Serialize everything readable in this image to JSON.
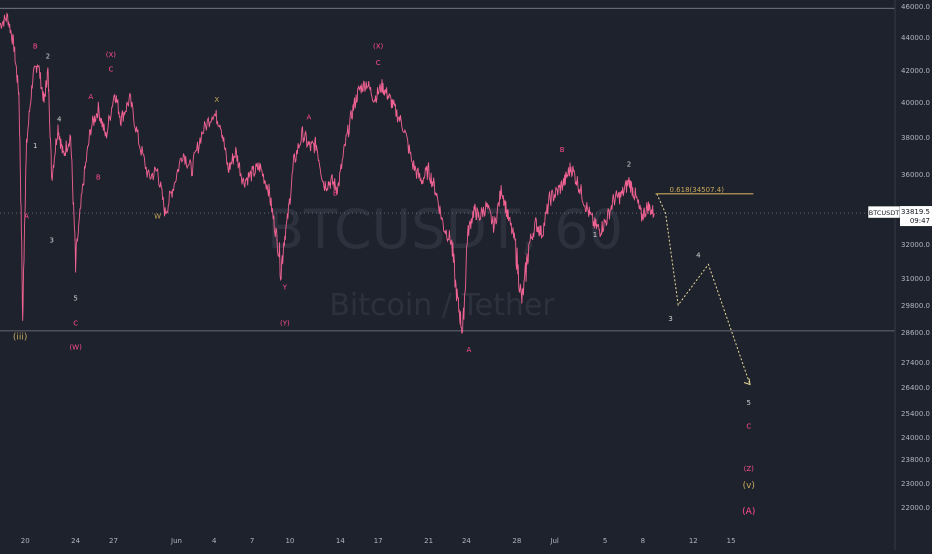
{
  "chart_data": {
    "type": "line",
    "title": "",
    "watermark": {
      "symbol": "BTCUSDT, 60",
      "name": "Bitcoin / Tether"
    },
    "colors": {
      "background": "#1e222d",
      "price": "#f06292",
      "projection": "#e8d99a",
      "fib": "#c8a95b",
      "label": "#d0d0d0",
      "label_alt": "#ff4d8d",
      "label_gold": "#c8a95b",
      "axis_text": "#b2b5be",
      "price_badge_bg": "#ffffff",
      "price_badge_text": "#131722"
    },
    "x_axis": {
      "range": [
        0,
        71
      ],
      "ticks": [
        {
          "x": 2,
          "label": "20"
        },
        {
          "x": 6,
          "label": "24"
        },
        {
          "x": 9,
          "label": "27"
        },
        {
          "x": 14,
          "label": "Jun"
        },
        {
          "x": 17,
          "label": "4"
        },
        {
          "x": 20,
          "label": "7"
        },
        {
          "x": 23,
          "label": "10"
        },
        {
          "x": 27,
          "label": "14"
        },
        {
          "x": 30,
          "label": "17"
        },
        {
          "x": 34,
          "label": "21"
        },
        {
          "x": 37,
          "label": "24"
        },
        {
          "x": 41,
          "label": "28"
        },
        {
          "x": 44,
          "label": "Jul"
        },
        {
          "x": 48,
          "label": "5"
        },
        {
          "x": 51,
          "label": "8"
        },
        {
          "x": 55,
          "label": "12"
        },
        {
          "x": 58,
          "label": "15"
        }
      ]
    },
    "y_axis": {
      "range": [
        21000,
        46000
      ],
      "ticks": [
        {
          "v": 46000,
          "label": "46000.0"
        },
        {
          "v": 44000,
          "label": "44000.0"
        },
        {
          "v": 42000,
          "label": "42000.0"
        },
        {
          "v": 40000,
          "label": "40000.0"
        },
        {
          "v": 38000,
          "label": "38000.0"
        },
        {
          "v": 36000,
          "label": "36000.0"
        },
        {
          "v": 34000,
          "label": "34000.0"
        },
        {
          "v": 32000,
          "label": "32000.0"
        },
        {
          "v": 31000,
          "label": "31000.0"
        },
        {
          "v": 29800,
          "label": "29800.0"
        },
        {
          "v": 28600,
          "label": "28600.0"
        },
        {
          "v": 27400,
          "label": "27400.0"
        },
        {
          "v": 26400,
          "label": "26400.0"
        },
        {
          "v": 25400,
          "label": "25400.0"
        },
        {
          "v": 24000,
          "label": "24000.0"
        },
        {
          "v": 23800,
          "label": "23800.0"
        },
        {
          "v": 23000,
          "label": "23000.0"
        },
        {
          "v": 22000,
          "label": "22000.0"
        }
      ]
    },
    "current_price": {
      "value": 33819.5,
      "symbol": "BTCUSDT",
      "price_label": "33819.5",
      "countdown": "09:47"
    },
    "horizontal_levels": [
      {
        "value": 45850
      },
      {
        "value": 28650
      }
    ],
    "price_series": [
      {
        "x": 0,
        "y": 44800
      },
      {
        "x": 0.6,
        "y": 45300
      },
      {
        "x": 1.1,
        "y": 43500
      },
      {
        "x": 1.5,
        "y": 40500
      },
      {
        "x": 1.8,
        "y": 29000
      },
      {
        "x": 2.1,
        "y": 37500
      },
      {
        "x": 2.6,
        "y": 41500
      },
      {
        "x": 3.0,
        "y": 42500
      },
      {
        "x": 3.5,
        "y": 40000
      },
      {
        "x": 3.8,
        "y": 42000
      },
      {
        "x": 4.1,
        "y": 35800
      },
      {
        "x": 4.6,
        "y": 38600
      },
      {
        "x": 5.0,
        "y": 37000
      },
      {
        "x": 5.6,
        "y": 38100
      },
      {
        "x": 6.0,
        "y": 31200
      },
      {
        "x": 6.6,
        "y": 35500
      },
      {
        "x": 7.2,
        "y": 38500
      },
      {
        "x": 7.8,
        "y": 39600
      },
      {
        "x": 8.4,
        "y": 38000
      },
      {
        "x": 9.1,
        "y": 40600
      },
      {
        "x": 9.6,
        "y": 39000
      },
      {
        "x": 10.3,
        "y": 40200
      },
      {
        "x": 11.0,
        "y": 37800
      },
      {
        "x": 11.8,
        "y": 35800
      },
      {
        "x": 12.5,
        "y": 36200
      },
      {
        "x": 13.1,
        "y": 33800
      },
      {
        "x": 13.7,
        "y": 35200
      },
      {
        "x": 14.5,
        "y": 37200
      },
      {
        "x": 15.2,
        "y": 36200
      },
      {
        "x": 16.0,
        "y": 38200
      },
      {
        "x": 16.9,
        "y": 39400
      },
      {
        "x": 17.5,
        "y": 38800
      },
      {
        "x": 18.1,
        "y": 36200
      },
      {
        "x": 18.7,
        "y": 37200
      },
      {
        "x": 19.3,
        "y": 35600
      },
      {
        "x": 20.0,
        "y": 36000
      },
      {
        "x": 20.6,
        "y": 36400
      },
      {
        "x": 21.3,
        "y": 35200
      },
      {
        "x": 21.8,
        "y": 33000
      },
      {
        "x": 22.3,
        "y": 31200
      },
      {
        "x": 22.8,
        "y": 33400
      },
      {
        "x": 23.3,
        "y": 36600
      },
      {
        "x": 24.0,
        "y": 38200
      },
      {
        "x": 24.6,
        "y": 37400
      },
      {
        "x": 25.1,
        "y": 37600
      },
      {
        "x": 25.7,
        "y": 35400
      },
      {
        "x": 26.3,
        "y": 35600
      },
      {
        "x": 26.8,
        "y": 35200
      },
      {
        "x": 27.4,
        "y": 37600
      },
      {
        "x": 28.0,
        "y": 39600
      },
      {
        "x": 28.5,
        "y": 40800
      },
      {
        "x": 29.1,
        "y": 41200
      },
      {
        "x": 29.7,
        "y": 40200
      },
      {
        "x": 30.3,
        "y": 41000
      },
      {
        "x": 30.8,
        "y": 40400
      },
      {
        "x": 31.3,
        "y": 39600
      },
      {
        "x": 32.0,
        "y": 38600
      },
      {
        "x": 32.7,
        "y": 36600
      },
      {
        "x": 33.4,
        "y": 35600
      },
      {
        "x": 34.0,
        "y": 36200
      },
      {
        "x": 34.6,
        "y": 35000
      },
      {
        "x": 35.2,
        "y": 33000
      },
      {
        "x": 35.8,
        "y": 32200
      },
      {
        "x": 36.3,
        "y": 30000
      },
      {
        "x": 36.7,
        "y": 28600
      },
      {
        "x": 37.1,
        "y": 32600
      },
      {
        "x": 37.6,
        "y": 34000
      },
      {
        "x": 38.0,
        "y": 33600
      },
      {
        "x": 38.6,
        "y": 34200
      },
      {
        "x": 39.2,
        "y": 33000
      },
      {
        "x": 39.8,
        "y": 35200
      },
      {
        "x": 40.3,
        "y": 33600
      },
      {
        "x": 40.9,
        "y": 32000
      },
      {
        "x": 41.4,
        "y": 30000
      },
      {
        "x": 41.9,
        "y": 31800
      },
      {
        "x": 42.5,
        "y": 33200
      },
      {
        "x": 43.0,
        "y": 32600
      },
      {
        "x": 43.6,
        "y": 34600
      },
      {
        "x": 44.2,
        "y": 35000
      },
      {
        "x": 44.8,
        "y": 35600
      },
      {
        "x": 45.3,
        "y": 36400
      },
      {
        "x": 45.9,
        "y": 35400
      },
      {
        "x": 46.5,
        "y": 34200
      },
      {
        "x": 47.1,
        "y": 33200
      },
      {
        "x": 47.6,
        "y": 32800
      },
      {
        "x": 48.1,
        "y": 33400
      },
      {
        "x": 48.7,
        "y": 34600
      },
      {
        "x": 49.3,
        "y": 34800
      },
      {
        "x": 49.9,
        "y": 35600
      },
      {
        "x": 50.4,
        "y": 34800
      },
      {
        "x": 50.9,
        "y": 33600
      },
      {
        "x": 51.4,
        "y": 34200
      },
      {
        "x": 51.9,
        "y": 33800
      }
    ],
    "projection": [
      {
        "x": 52.1,
        "y": 34900
      },
      {
        "x": 52.8,
        "y": 33800
      },
      {
        "x": 53.8,
        "y": 29800
      },
      {
        "x": 56.2,
        "y": 31400
      },
      {
        "x": 59.5,
        "y": 26500
      }
    ],
    "fib_level": {
      "x0": 52.0,
      "x1": 55.0,
      "y": 34900,
      "label": "0.618(34507.4)"
    },
    "wave_labels": [
      {
        "text": "B",
        "x": 2.8,
        "y": 43300,
        "style": "label_alt"
      },
      {
        "text": "2",
        "x": 3.8,
        "y": 42700,
        "style": "label"
      },
      {
        "text": "1",
        "x": 2.8,
        "y": 37400,
        "style": "label"
      },
      {
        "text": "A",
        "x": 2.1,
        "y": 33500,
        "style": "label_alt"
      },
      {
        "text": "3",
        "x": 4.1,
        "y": 32100,
        "style": "label"
      },
      {
        "text": "4",
        "x": 4.7,
        "y": 38900,
        "style": "label"
      },
      {
        "text": "5",
        "x": 6.0,
        "y": 30000,
        "style": "label"
      },
      {
        "text": "C",
        "x": 6.0,
        "y": 28900,
        "style": "label_alt"
      },
      {
        "text": "(W)",
        "x": 6.0,
        "y": 27900,
        "style": "label_alt"
      },
      {
        "text": "(iii)",
        "x": 1.6,
        "y": 28300,
        "style": "label_gold"
      },
      {
        "text": "A",
        "x": 7.2,
        "y": 40200,
        "style": "label_alt"
      },
      {
        "text": "B",
        "x": 7.8,
        "y": 35700,
        "style": "label_alt"
      },
      {
        "text": "(X)",
        "x": 8.8,
        "y": 42800,
        "style": "label_alt"
      },
      {
        "text": "C",
        "x": 8.8,
        "y": 41900,
        "style": "label_alt"
      },
      {
        "text": "W",
        "x": 12.5,
        "y": 33500,
        "style": "label_gold"
      },
      {
        "text": "X",
        "x": 17.2,
        "y": 40000,
        "style": "label_gold"
      },
      {
        "text": "A",
        "x": 24.5,
        "y": 39000,
        "style": "label_alt"
      },
      {
        "text": "B",
        "x": 26.6,
        "y": 34800,
        "style": "label_alt"
      },
      {
        "text": "Y",
        "x": 22.6,
        "y": 30500,
        "style": "label_alt"
      },
      {
        "text": "(Y)",
        "x": 22.6,
        "y": 28900,
        "style": "label_alt"
      },
      {
        "text": "(X)",
        "x": 30.0,
        "y": 43300,
        "style": "label_alt"
      },
      {
        "text": "C",
        "x": 30.0,
        "y": 42300,
        "style": "label_alt"
      },
      {
        "text": "A",
        "x": 37.2,
        "y": 27800,
        "style": "label_alt"
      },
      {
        "text": "B",
        "x": 44.6,
        "y": 37200,
        "style": "label_alt"
      },
      {
        "text": "1",
        "x": 47.2,
        "y": 32400,
        "style": "label"
      },
      {
        "text": "2",
        "x": 49.9,
        "y": 36400,
        "style": "label"
      },
      {
        "text": "3",
        "x": 53.2,
        "y": 29100,
        "style": "label"
      },
      {
        "text": "4",
        "x": 55.4,
        "y": 31600,
        "style": "label"
      },
      {
        "text": "5",
        "x": 59.4,
        "y": 25700,
        "style": "label"
      },
      {
        "text": "C",
        "x": 59.4,
        "y": 24500,
        "style": "label_alt"
      },
      {
        "text": "(Z)",
        "x": 59.4,
        "y": 23400,
        "style": "label_alt"
      },
      {
        "text": "(v)",
        "x": 59.4,
        "y": 22800,
        "style": "label_gold"
      },
      {
        "text": "(A)",
        "x": 59.4,
        "y": 21700,
        "style": "label_alt"
      }
    ]
  }
}
